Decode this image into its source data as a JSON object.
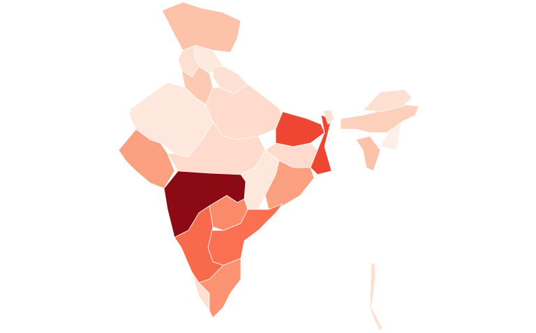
{
  "map": {
    "type": "choropleth",
    "border_color": "#ffffff",
    "regions": [
      {
        "color": "#fcc2aa"
      },
      {
        "color": "#fee9df"
      },
      {
        "color": "#fde0d2"
      },
      {
        "color": "#fee1d4"
      },
      {
        "color": "#fcc9b3"
      },
      {
        "color": "#fee8de"
      },
      {
        "color": "#fedbcc"
      },
      {
        "color": "#fca082"
      },
      {
        "color": "#fedbcc"
      },
      {
        "color": "#ef4533"
      },
      {
        "color": "#fedbcc"
      },
      {
        "color": "#ef4533"
      },
      {
        "color": "#fee8de"
      },
      {
        "color": "#fca082"
      },
      {
        "color": "#8b0a14"
      },
      {
        "color": "#fb8a6a"
      },
      {
        "color": "#fb7050"
      },
      {
        "color": "#f9694c"
      },
      {
        "color": "#fde0d2"
      },
      {
        "color": "#fc9373"
      },
      {
        "color": "#fdd0bc"
      },
      {
        "color": "#fde0d2"
      },
      {
        "color": "#fde0d2"
      },
      {
        "color": "#fef0e9"
      },
      {
        "color": "#fcc2aa"
      },
      {
        "color": "#fde0d2"
      }
    ]
  }
}
